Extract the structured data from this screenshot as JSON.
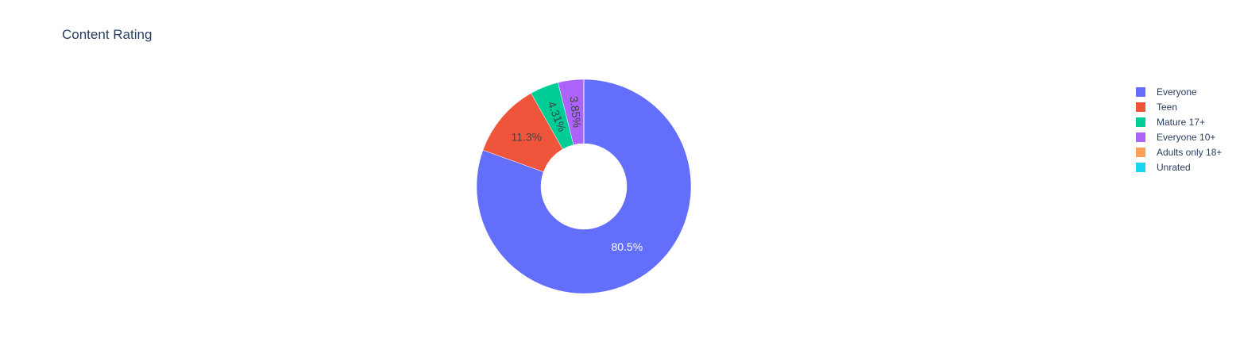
{
  "chart_data": {
    "type": "pie",
    "hole": 0.4,
    "title": "Content Rating",
    "sort": "descending",
    "direction": "clockwise",
    "legend_position": "right",
    "labels": [
      "Everyone",
      "Teen",
      "Mature 17+",
      "Everyone 10+",
      "Adults only 18+",
      "Unrated"
    ],
    "values": [
      80.5,
      11.3,
      4.31,
      3.85,
      0.02,
      0.01
    ],
    "text_labels": [
      "80.5%",
      "11.3%",
      "4.31%",
      "3.85%",
      "",
      ""
    ],
    "colors": [
      "#636efa",
      "#EF553B",
      "#00cc96",
      "#ab63fa",
      "#FFA15A",
      "#19d3f3"
    ],
    "text_colors": [
      "#ffffff",
      "#444444",
      "#444444",
      "#444444",
      "#444444",
      "#444444"
    ]
  }
}
